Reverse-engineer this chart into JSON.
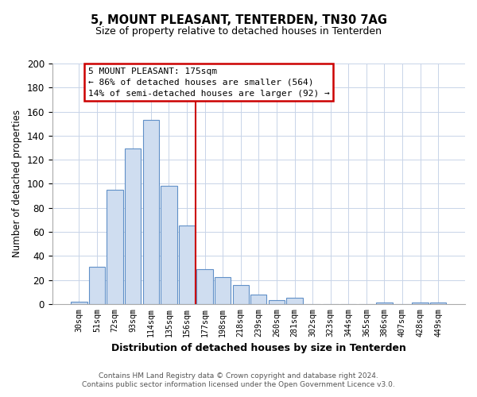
{
  "title": "5, MOUNT PLEASANT, TENTERDEN, TN30 7AG",
  "subtitle": "Size of property relative to detached houses in Tenterden",
  "xlabel": "Distribution of detached houses by size in Tenterden",
  "ylabel": "Number of detached properties",
  "bar_labels": [
    "30sqm",
    "51sqm",
    "72sqm",
    "93sqm",
    "114sqm",
    "135sqm",
    "156sqm",
    "177sqm",
    "198sqm",
    "218sqm",
    "239sqm",
    "260sqm",
    "281sqm",
    "302sqm",
    "323sqm",
    "344sqm",
    "365sqm",
    "386sqm",
    "407sqm",
    "428sqm",
    "449sqm"
  ],
  "bar_values": [
    2,
    31,
    95,
    129,
    153,
    98,
    65,
    29,
    22,
    16,
    8,
    3,
    5,
    0,
    0,
    0,
    0,
    1,
    0,
    1,
    1
  ],
  "bar_color": "#cfddf0",
  "bar_edge_color": "#6090c8",
  "vline_x_index": 7,
  "vline_color": "#cc0000",
  "ylim": [
    0,
    200
  ],
  "yticks": [
    0,
    20,
    40,
    60,
    80,
    100,
    120,
    140,
    160,
    180,
    200
  ],
  "annotation_title": "5 MOUNT PLEASANT: 175sqm",
  "annotation_line1": "← 86% of detached houses are smaller (564)",
  "annotation_line2": "14% of semi-detached houses are larger (92) →",
  "footnote1": "Contains HM Land Registry data © Crown copyright and database right 2024.",
  "footnote2": "Contains public sector information licensed under the Open Government Licence v3.0.",
  "background_color": "#ffffff",
  "grid_color": "#c8d4e8"
}
